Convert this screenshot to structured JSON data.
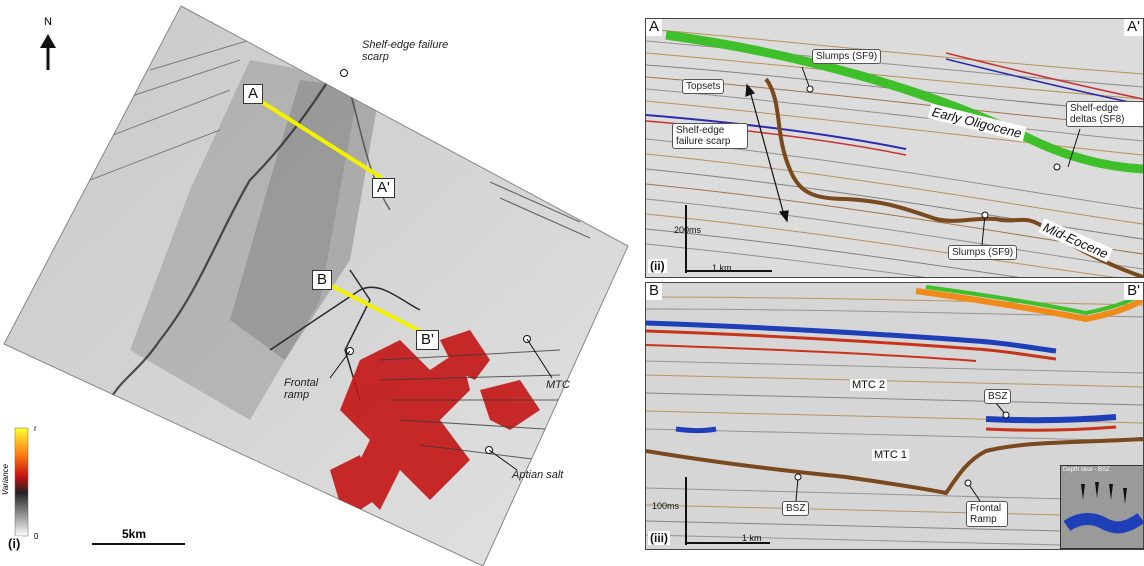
{
  "panel_i": {
    "tag": "(i)",
    "north_label": "N",
    "scale_label": "5km",
    "colorbar_title": "Variance",
    "colorbar_max": "r",
    "colorbar_min": "0",
    "profile_A": "A",
    "profile_A_prime": "A'",
    "profile_B": "B",
    "profile_B_prime": "B'",
    "callout_scarp": "Shelf-edge failure scarp",
    "callout_frontal": "Frontal ramp",
    "callout_mtc": "MTC",
    "callout_salt": "Aptian salt",
    "colors": {
      "profile_line": "#f2f200",
      "variance_high": "#d01818"
    }
  },
  "panel_ii": {
    "tag": "(ii)",
    "corner_left": "A",
    "corner_right": "A'",
    "box_slumps_top": "Slumps (SF9)",
    "box_topsets": "Topsets",
    "box_scarp": "Shelf-edge failure scarp",
    "box_deltas": "Shelf-edge deltas (SF8)",
    "box_slumps_bottom": "Slumps (SF9)",
    "horizon_oligocene": "Early Oligocene",
    "horizon_eocene": "Mid-Eocene",
    "vertical_scale": "200ms",
    "horizontal_scale": "1 km",
    "colors": {
      "green_horizon": "#3fbf2a",
      "brown_horizon": "#7a4a1e"
    }
  },
  "panel_iii": {
    "tag": "(iii)",
    "corner_left": "B",
    "corner_right": "B'",
    "label_mtc2": "MTC 2",
    "label_mtc1": "MTC 1",
    "box_bsz_top": "BSZ",
    "box_bsz_bottom": "BSZ",
    "box_frontal": "Frontal Ramp",
    "vertical_scale": "100ms",
    "horizontal_scale": "1 km",
    "inset_caption": "Depth slice - BSZ",
    "colors": {
      "blue_reflector": "#1f3fb8",
      "red_reflector": "#c8341a",
      "orange_reflector": "#f08a18"
    }
  }
}
